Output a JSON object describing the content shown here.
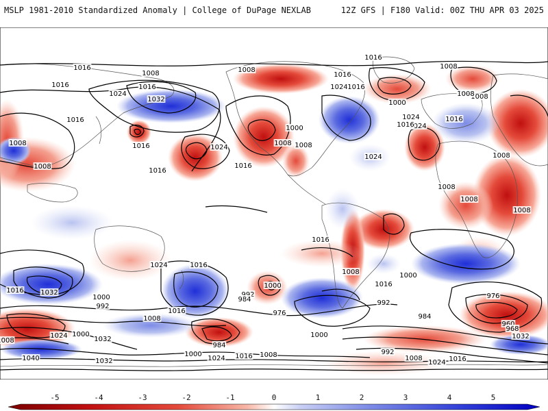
{
  "header": {
    "left_title": "MSLP 1981-2010 Standardized Anomaly | College of DuPage NEXLAB",
    "right_title": "12Z GFS | F180 Valid: 00Z THU APR 03 2025"
  },
  "colorbar": {
    "ticks": [
      "-5",
      "-4",
      "-3",
      "-2",
      "-1",
      "0",
      "1",
      "2",
      "3",
      "4",
      "5"
    ],
    "colors": {
      "neg_strong": "#7a0000",
      "neg_mid": "#d92020",
      "neg_light": "#f4a090",
      "zero": "#ffffff",
      "pos_light": "#b8c2f0",
      "pos_mid": "#5a6ae0",
      "pos_strong": "#0000c0"
    }
  },
  "isobar_labels": [
    "1016",
    "1016",
    "1008",
    "1016",
    "1016",
    "1008",
    "1024",
    "1000",
    "1016",
    "1016",
    "1008",
    "1032",
    "1024",
    "1016",
    "1008",
    "1016",
    "1024",
    "1016",
    "1000",
    "1008",
    "1008",
    "1024",
    "1016",
    "1024",
    "1016",
    "1008",
    "1008",
    "1008",
    "1008",
    "1008",
    "1008",
    "1016",
    "1024",
    "1016",
    "1024",
    "1016",
    "1000",
    "992",
    "984",
    "976",
    "1008",
    "1016",
    "1000",
    "992",
    "984",
    "1016",
    "1032",
    "1000",
    "992",
    "1016",
    "1008",
    "976",
    "960",
    "968",
    "984",
    "1000",
    "1024",
    "1000",
    "1032",
    "1008",
    "1040",
    "1032",
    "1000",
    "1024",
    "1016",
    "1008",
    "992",
    "1008",
    "1024",
    "1016",
    "1032",
    "1008"
  ]
}
